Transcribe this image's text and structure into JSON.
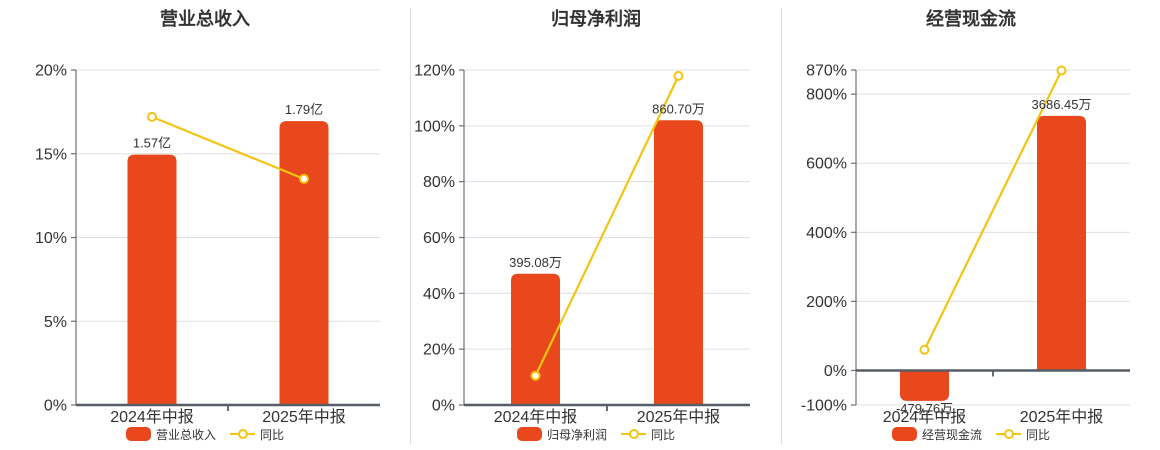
{
  "colors": {
    "background": "#ffffff",
    "bar": "#e8481c",
    "line": "#f3c512",
    "grid": "#dfdfe8",
    "axis_line": "#6e7079",
    "zero_line": "#565d66",
    "text": "#333333",
    "divider": "#dcdcdc",
    "marker_fill": "#ffffff"
  },
  "chart_data": [
    {
      "type": "bar",
      "title": "营业总收入",
      "categories": [
        "2024年中报",
        "2025年中报"
      ],
      "ylim": [
        0,
        20
      ],
      "yticks": [
        0,
        5,
        10,
        15,
        20
      ],
      "ytick_labels": [
        "0%",
        "5%",
        "10%",
        "15%",
        "20%"
      ],
      "grid": true,
      "legend_position": "bottom",
      "series": [
        {
          "name": "营业总收入",
          "type": "bar",
          "value_labels": [
            "1.57亿",
            "1.79亿"
          ],
          "plot_values": [
            14.95,
            16.95
          ]
        },
        {
          "name": "同比",
          "type": "line",
          "plot_values": [
            17.2,
            13.5
          ]
        }
      ]
    },
    {
      "type": "bar",
      "title": "归母净利润",
      "categories": [
        "2024年中报",
        "2025年中报"
      ],
      "ylim": [
        0,
        120
      ],
      "yticks": [
        0,
        20,
        40,
        60,
        80,
        100,
        120
      ],
      "ytick_labels": [
        "0%",
        "20%",
        "40%",
        "60%",
        "80%",
        "100%",
        "120%"
      ],
      "grid": true,
      "legend_position": "bottom",
      "series": [
        {
          "name": "归母净利润",
          "type": "bar",
          "value_labels": [
            "395.08万",
            "860.70万"
          ],
          "plot_values": [
            47,
            102
          ]
        },
        {
          "name": "同比",
          "type": "line",
          "plot_values": [
            10.5,
            117.9
          ]
        }
      ]
    },
    {
      "type": "bar",
      "title": "经营现金流",
      "categories": [
        "2024年中报",
        "2025年中报"
      ],
      "ylim": [
        -100,
        870
      ],
      "yticks": [
        -100,
        0,
        200,
        400,
        600,
        800,
        870
      ],
      "ytick_labels": [
        "-100%",
        "0%",
        "200%",
        "400%",
        "600%",
        "800%",
        "870%"
      ],
      "grid": true,
      "legend_position": "bottom",
      "series": [
        {
          "name": "经营现金流",
          "type": "bar",
          "value_labels": [
            "-479.76万",
            "3686.45万"
          ],
          "plot_values": [
            -88,
            737
          ]
        },
        {
          "name": "同比",
          "type": "line",
          "plot_values": [
            60,
            868.4
          ]
        }
      ]
    }
  ]
}
